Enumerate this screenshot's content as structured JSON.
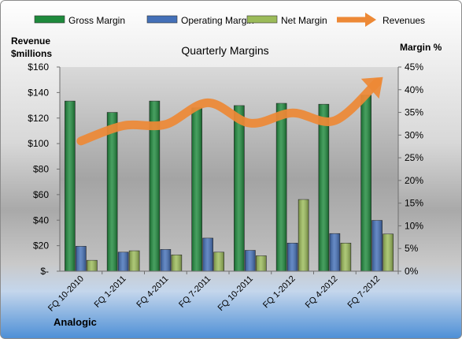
{
  "chart_data": {
    "type": "bar",
    "title": "Quarterly Margins",
    "source": "Analogic",
    "left_axis": {
      "label_line1": "Revenue",
      "label_line2": "$millions",
      "ticks": [
        "$-",
        "$20",
        "$40",
        "$60",
        "$80",
        "$100",
        "$120",
        "$140",
        "$160"
      ],
      "ylim": [
        0,
        160
      ]
    },
    "right_axis": {
      "label": "Margin %",
      "ticks": [
        "0%",
        "5%",
        "10%",
        "15%",
        "20%",
        "25%",
        "30%",
        "35%",
        "40%",
        "45%"
      ],
      "ylim": [
        0,
        45
      ]
    },
    "categories": [
      "FQ 10-2010",
      "FQ 1-2011",
      "FQ 4-2011",
      "FQ 7-2011",
      "FQ 10-2011",
      "FQ 1-2012",
      "FQ 4-2012",
      "FQ 7-2012"
    ],
    "series": [
      {
        "name": "Gross Margin",
        "axis": "right",
        "color": "#1e8a3c",
        "values": [
          37.5,
          35,
          37.5,
          36,
          36.5,
          37,
          36.8,
          38.8
        ]
      },
      {
        "name": "Operating Margin",
        "axis": "right",
        "color": "#4470b8",
        "values": [
          5.5,
          4.2,
          4.8,
          7.3,
          4.6,
          6.2,
          8.3,
          11.2
        ]
      },
      {
        "name": "Net Margin",
        "axis": "right",
        "color": "#9bbb59",
        "values": [
          2.4,
          4.5,
          3.6,
          4.2,
          3.4,
          15.8,
          6.2,
          8.2
        ]
      },
      {
        "name": "Revenues",
        "axis": "left",
        "type": "line",
        "color": "#ed8936",
        "values": [
          102,
          114,
          115,
          132,
          116,
          124,
          118,
          148
        ]
      }
    ],
    "legend_position": "top",
    "grid": false
  }
}
